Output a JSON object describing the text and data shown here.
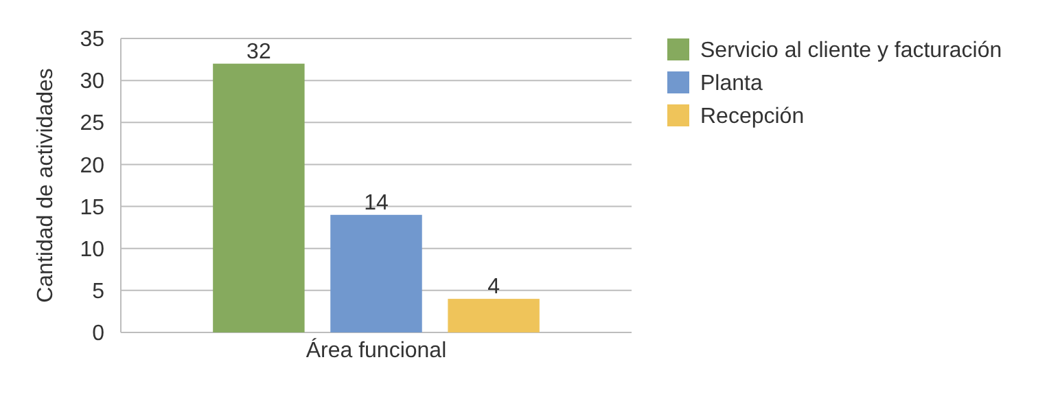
{
  "chart_data": {
    "type": "bar",
    "xlabel": "Área funcional",
    "ylabel": "Cantidad de actividades",
    "categories": [
      "Área funcional"
    ],
    "series": [
      {
        "name": "Servicio al cliente y facturación",
        "color": "#86aa5e",
        "values": [
          32
        ]
      },
      {
        "name": "Planta",
        "color": "#7198ce",
        "values": [
          14
        ]
      },
      {
        "name": "Recepción",
        "color": "#efc45a",
        "values": [
          4
        ]
      }
    ],
    "ylim": [
      0,
      35
    ],
    "yticks": [
      0,
      5,
      10,
      15,
      20,
      25,
      30,
      35
    ],
    "grid": "y",
    "legend": "top right",
    "data_labels": true
  }
}
